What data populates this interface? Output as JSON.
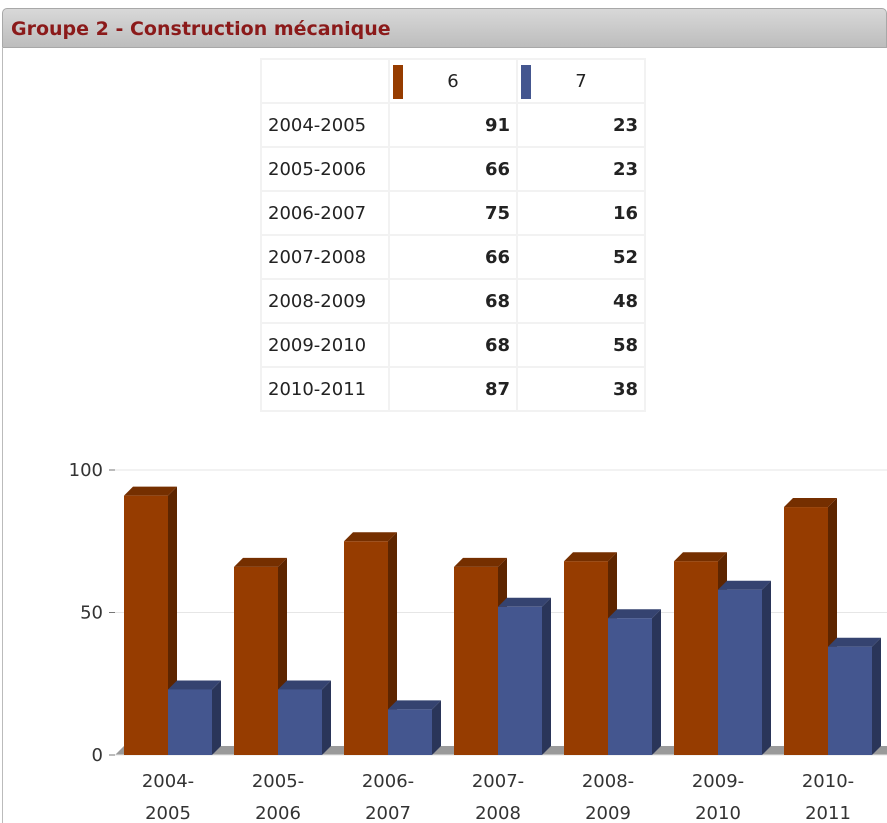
{
  "chart_data": {
    "type": "bar3d",
    "title": "Groupe 2 - Construction mécanique",
    "categories": [
      "2004-2005",
      "2005-2006",
      "2006-2007",
      "2007-2008",
      "2008-2009",
      "2009-2010",
      "2010-2011"
    ],
    "series": [
      {
        "name": "6",
        "color": "#963c00",
        "values": [
          91,
          66,
          75,
          66,
          68,
          68,
          87
        ]
      },
      {
        "name": "7",
        "color": "#44568f",
        "values": [
          23,
          23,
          16,
          52,
          48,
          58,
          38
        ]
      }
    ],
    "ylim": [
      0,
      100
    ],
    "yticks": [
      0,
      50,
      100
    ],
    "grid": true
  }
}
